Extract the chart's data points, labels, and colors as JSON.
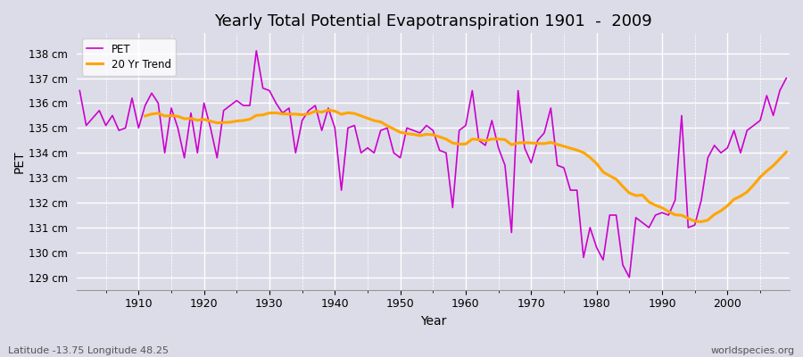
{
  "title": "Yearly Total Potential Evapotranspiration 1901  -  2009",
  "xlabel": "Year",
  "ylabel": "PET",
  "subtitle_left": "Latitude -13.75 Longitude 48.25",
  "subtitle_right": "worldspecies.org",
  "pet_color": "#CC00CC",
  "trend_color": "#FFA500",
  "bg_color": "#DCDCE8",
  "grid_color": "#FFFFFF",
  "ylim": [
    128.5,
    138.8
  ],
  "yticks": [
    129,
    130,
    131,
    132,
    133,
    134,
    135,
    136,
    137,
    138
  ],
  "ytick_labels": [
    "129 cm",
    "130 cm",
    "131 cm",
    "132 cm",
    "133 cm",
    "134 cm",
    "135 cm",
    "136 cm",
    "137 cm",
    "138 cm"
  ],
  "years": [
    1901,
    1902,
    1903,
    1904,
    1905,
    1906,
    1907,
    1908,
    1909,
    1910,
    1911,
    1912,
    1913,
    1914,
    1915,
    1916,
    1917,
    1918,
    1919,
    1920,
    1921,
    1922,
    1923,
    1924,
    1925,
    1926,
    1927,
    1928,
    1929,
    1930,
    1931,
    1932,
    1933,
    1934,
    1935,
    1936,
    1937,
    1938,
    1939,
    1940,
    1941,
    1942,
    1943,
    1944,
    1945,
    1946,
    1947,
    1948,
    1949,
    1950,
    1951,
    1952,
    1953,
    1954,
    1955,
    1956,
    1957,
    1958,
    1959,
    1960,
    1961,
    1962,
    1963,
    1964,
    1965,
    1966,
    1967,
    1968,
    1969,
    1970,
    1971,
    1972,
    1973,
    1974,
    1975,
    1976,
    1977,
    1978,
    1979,
    1980,
    1981,
    1982,
    1983,
    1984,
    1985,
    1986,
    1987,
    1988,
    1989,
    1990,
    1991,
    1992,
    1993,
    1994,
    1995,
    1996,
    1997,
    1998,
    1999,
    2000,
    2001,
    2002,
    2003,
    2004,
    2005,
    2006,
    2007,
    2008,
    2009
  ],
  "pet_values": [
    136.5,
    135.1,
    135.4,
    135.7,
    135.1,
    135.5,
    134.9,
    135.0,
    136.2,
    135.0,
    135.9,
    136.4,
    136.0,
    134.0,
    135.8,
    135.0,
    133.8,
    135.6,
    134.0,
    136.0,
    135.0,
    133.8,
    135.7,
    135.9,
    136.1,
    135.9,
    135.9,
    138.1,
    136.6,
    136.5,
    136.0,
    135.6,
    135.8,
    134.0,
    135.3,
    135.7,
    135.9,
    134.9,
    135.8,
    135.0,
    132.5,
    135.0,
    135.1,
    134.0,
    134.2,
    134.0,
    134.9,
    135.0,
    134.0,
    133.8,
    135.0,
    134.9,
    134.8,
    135.1,
    134.9,
    134.1,
    134.0,
    131.8,
    134.9,
    135.1,
    136.5,
    134.5,
    134.3,
    135.3,
    134.2,
    133.5,
    130.8,
    136.5,
    134.2,
    133.6,
    134.5,
    134.8,
    135.8,
    133.5,
    133.4,
    132.5,
    132.5,
    129.8,
    131.0,
    130.2,
    129.7,
    131.5,
    131.5,
    129.5,
    129.0,
    131.4,
    131.2,
    131.0,
    131.5,
    131.6,
    131.5,
    132.1,
    135.5,
    131.0,
    131.1,
    132.1,
    133.8,
    134.3,
    134.0,
    134.2,
    134.9,
    134.0,
    134.9,
    135.1,
    135.3,
    136.3,
    135.5,
    136.5,
    137.0
  ],
  "trend_window": 20,
  "legend_pet": "PET",
  "legend_trend": "20 Yr Trend"
}
